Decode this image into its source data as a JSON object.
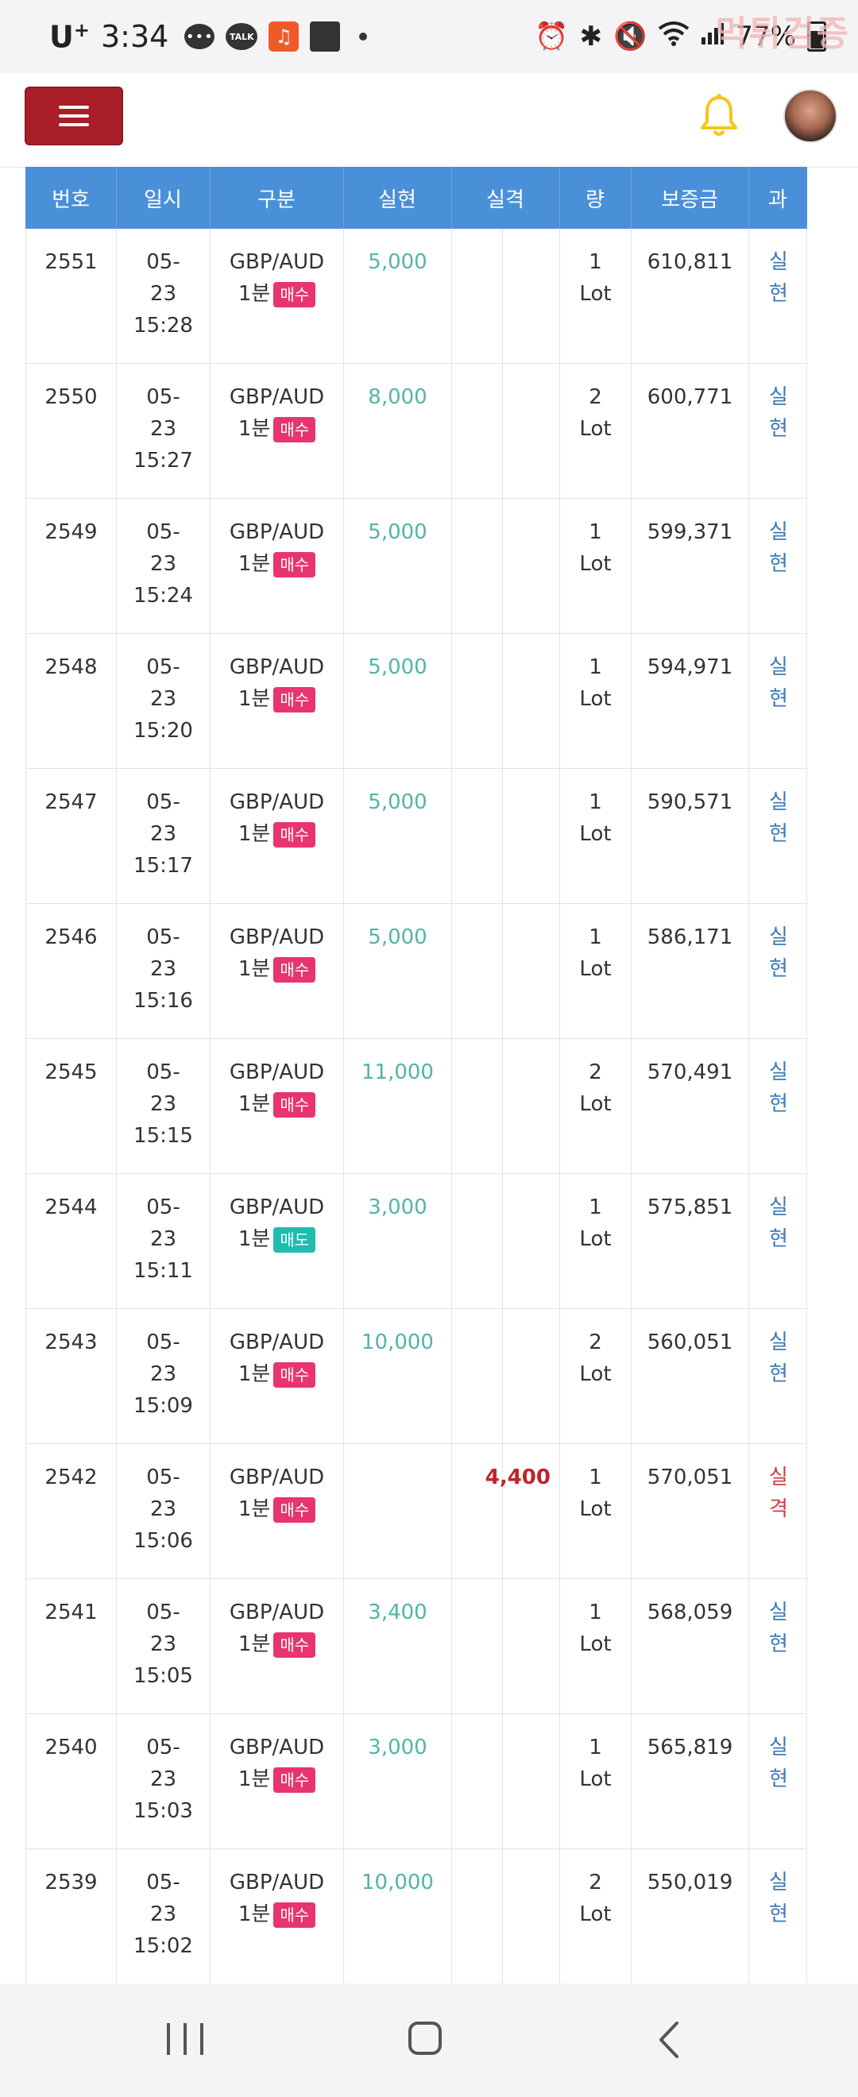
{
  "status_bar": {
    "carrier": "U",
    "carrier_sup": "+",
    "time": "3:34",
    "talk_label": "TALK",
    "battery": "77%",
    "watermark": "먹튀검증"
  },
  "table": {
    "headers": [
      "번호",
      "일시",
      "구분",
      "실현",
      "실격",
      "량",
      "보증금",
      "과"
    ],
    "rows": [
      {
        "no": "2551",
        "date": "05-",
        "day": "23",
        "time": "15:28",
        "pair": "GBP/AUD",
        "period": "1분",
        "side": "매수",
        "profit": "5,000",
        "loss": "",
        "qty": "1",
        "unit": "Lot",
        "deposit": "610,811",
        "r1": "실",
        "r2": "현",
        "result": "ok"
      },
      {
        "no": "2550",
        "date": "05-",
        "day": "23",
        "time": "15:27",
        "pair": "GBP/AUD",
        "period": "1분",
        "side": "매수",
        "profit": "8,000",
        "loss": "",
        "qty": "2",
        "unit": "Lot",
        "deposit": "600,771",
        "r1": "실",
        "r2": "현",
        "result": "ok"
      },
      {
        "no": "2549",
        "date": "05-",
        "day": "23",
        "time": "15:24",
        "pair": "GBP/AUD",
        "period": "1분",
        "side": "매수",
        "profit": "5,000",
        "loss": "",
        "qty": "1",
        "unit": "Lot",
        "deposit": "599,371",
        "r1": "실",
        "r2": "현",
        "result": "ok"
      },
      {
        "no": "2548",
        "date": "05-",
        "day": "23",
        "time": "15:20",
        "pair": "GBP/AUD",
        "period": "1분",
        "side": "매수",
        "profit": "5,000",
        "loss": "",
        "qty": "1",
        "unit": "Lot",
        "deposit": "594,971",
        "r1": "실",
        "r2": "현",
        "result": "ok"
      },
      {
        "no": "2547",
        "date": "05-",
        "day": "23",
        "time": "15:17",
        "pair": "GBP/AUD",
        "period": "1분",
        "side": "매수",
        "profit": "5,000",
        "loss": "",
        "qty": "1",
        "unit": "Lot",
        "deposit": "590,571",
        "r1": "실",
        "r2": "현",
        "result": "ok"
      },
      {
        "no": "2546",
        "date": "05-",
        "day": "23",
        "time": "15:16",
        "pair": "GBP/AUD",
        "period": "1분",
        "side": "매수",
        "profit": "5,000",
        "loss": "",
        "qty": "1",
        "unit": "Lot",
        "deposit": "586,171",
        "r1": "실",
        "r2": "현",
        "result": "ok"
      },
      {
        "no": "2545",
        "date": "05-",
        "day": "23",
        "time": "15:15",
        "pair": "GBP/AUD",
        "period": "1분",
        "side": "매수",
        "profit": "11,000",
        "loss": "",
        "qty": "2",
        "unit": "Lot",
        "deposit": "570,491",
        "r1": "실",
        "r2": "현",
        "result": "ok"
      },
      {
        "no": "2544",
        "date": "05-",
        "day": "23",
        "time": "15:11",
        "pair": "GBP/AUD",
        "period": "1분",
        "side": "매도",
        "profit": "3,000",
        "loss": "",
        "qty": "1",
        "unit": "Lot",
        "deposit": "575,851",
        "r1": "실",
        "r2": "현",
        "result": "ok"
      },
      {
        "no": "2543",
        "date": "05-",
        "day": "23",
        "time": "15:09",
        "pair": "GBP/AUD",
        "period": "1분",
        "side": "매수",
        "profit": "10,000",
        "loss": "",
        "qty": "2",
        "unit": "Lot",
        "deposit": "560,051",
        "r1": "실",
        "r2": "현",
        "result": "ok"
      },
      {
        "no": "2542",
        "date": "05-",
        "day": "23",
        "time": "15:06",
        "pair": "GBP/AUD",
        "period": "1분",
        "side": "매수",
        "profit": "",
        "loss": "4,400",
        "qty": "1",
        "unit": "Lot",
        "deposit": "570,051",
        "r1": "실",
        "r2": "격",
        "result": "bad"
      },
      {
        "no": "2541",
        "date": "05-",
        "day": "23",
        "time": "15:05",
        "pair": "GBP/AUD",
        "period": "1분",
        "side": "매수",
        "profit": "3,400",
        "loss": "",
        "qty": "1",
        "unit": "Lot",
        "deposit": "568,059",
        "r1": "실",
        "r2": "현",
        "result": "ok"
      },
      {
        "no": "2540",
        "date": "05-",
        "day": "23",
        "time": "15:03",
        "pair": "GBP/AUD",
        "period": "1분",
        "side": "매수",
        "profit": "3,000",
        "loss": "",
        "qty": "1",
        "unit": "Lot",
        "deposit": "565,819",
        "r1": "실",
        "r2": "현",
        "result": "ok"
      },
      {
        "no": "2539",
        "date": "05-",
        "day": "23",
        "time": "15:02",
        "pair": "GBP/AUD",
        "period": "1분",
        "side": "매수",
        "profit": "10,000",
        "loss": "",
        "qty": "2",
        "unit": "Lot",
        "deposit": "550,019",
        "r1": "실",
        "r2": "현",
        "result": "ok"
      }
    ]
  },
  "icons": {
    "menu": "hamburger-menu-icon",
    "bell": "bell-icon",
    "avatar": "user-avatar"
  },
  "colors": {
    "menu_button": "#a91f28",
    "header_bg": "#4a90d9",
    "buy_badge": "#e8356d",
    "sell_badge": "#1ebdb0",
    "profit": "#52b5a6",
    "loss": "#c0242b",
    "bell": "#f5c518"
  }
}
